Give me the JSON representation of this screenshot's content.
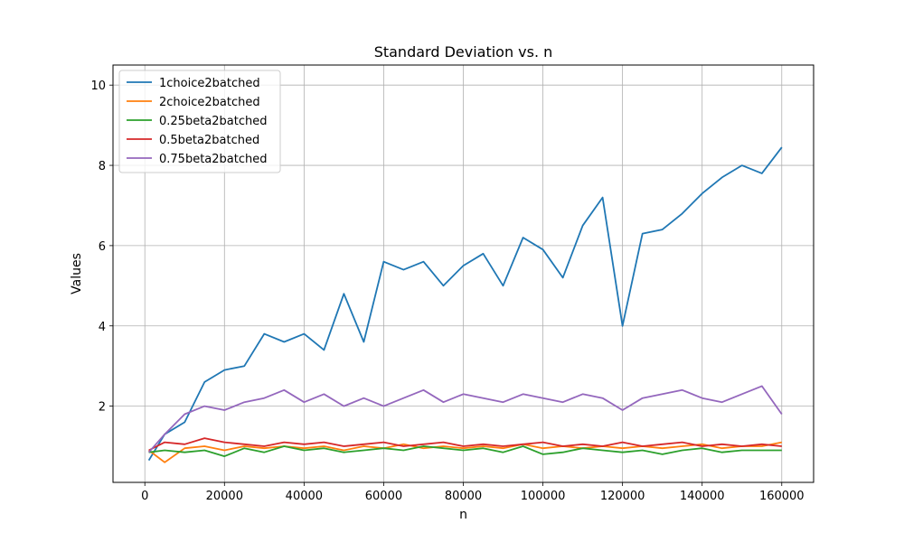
{
  "chart_data": {
    "type": "line",
    "title": "Standard Deviation vs. n",
    "xlabel": "n",
    "ylabel": "Values",
    "xlim": [
      -8000,
      168000
    ],
    "ylim": [
      0.1,
      10.5
    ],
    "xticks": [
      0,
      20000,
      40000,
      60000,
      80000,
      100000,
      120000,
      140000,
      160000
    ],
    "yticks": [
      2,
      4,
      6,
      8,
      10
    ],
    "grid": true,
    "legend_position": "top-left",
    "x": [
      1000,
      5000,
      10000,
      15000,
      20000,
      25000,
      30000,
      35000,
      40000,
      45000,
      50000,
      55000,
      60000,
      65000,
      70000,
      75000,
      80000,
      85000,
      90000,
      95000,
      100000,
      105000,
      110000,
      115000,
      120000,
      125000,
      130000,
      135000,
      140000,
      145000,
      150000,
      155000,
      160000
    ],
    "series": [
      {
        "name": "1choice2batched",
        "color": "#1f77b4",
        "values": [
          0.65,
          1.3,
          1.6,
          2.6,
          2.9,
          3.0,
          3.8,
          3.6,
          3.8,
          3.4,
          4.8,
          3.6,
          5.6,
          5.4,
          5.6,
          5.0,
          5.5,
          5.8,
          5.0,
          6.2,
          5.9,
          5.2,
          6.5,
          7.2,
          4.0,
          6.3,
          6.4,
          6.8,
          7.3,
          7.7,
          8.0,
          7.8,
          8.45
        ]
      },
      {
        "name": "2choice2batched",
        "color": "#ff7f0e",
        "values": [
          0.9,
          0.6,
          0.95,
          1.0,
          0.9,
          1.0,
          0.95,
          1.0,
          0.95,
          1.0,
          0.9,
          1.0,
          0.95,
          1.05,
          0.95,
          1.0,
          0.95,
          1.0,
          0.95,
          1.05,
          0.95,
          1.0,
          0.95,
          1.0,
          0.95,
          1.0,
          0.95,
          1.0,
          1.05,
          0.95,
          1.0,
          1.0,
          1.1
        ]
      },
      {
        "name": "0.25beta2batched",
        "color": "#2ca02c",
        "values": [
          0.85,
          0.9,
          0.85,
          0.9,
          0.75,
          0.95,
          0.85,
          1.0,
          0.9,
          0.95,
          0.85,
          0.9,
          0.95,
          0.9,
          1.0,
          0.95,
          0.9,
          0.95,
          0.85,
          1.0,
          0.8,
          0.85,
          0.95,
          0.9,
          0.85,
          0.9,
          0.8,
          0.9,
          0.95,
          0.85,
          0.9,
          0.9,
          0.9
        ]
      },
      {
        "name": "0.5beta2batched",
        "color": "#d62728",
        "values": [
          0.9,
          1.1,
          1.05,
          1.2,
          1.1,
          1.05,
          1.0,
          1.1,
          1.05,
          1.1,
          1.0,
          1.05,
          1.1,
          1.0,
          1.05,
          1.1,
          1.0,
          1.05,
          1.0,
          1.05,
          1.1,
          1.0,
          1.05,
          1.0,
          1.1,
          1.0,
          1.05,
          1.1,
          1.0,
          1.05,
          1.0,
          1.05,
          1.0
        ]
      },
      {
        "name": "0.75beta2batched",
        "color": "#9467bd",
        "values": [
          0.85,
          1.3,
          1.8,
          2.0,
          1.9,
          2.1,
          2.2,
          2.4,
          2.1,
          2.3,
          2.0,
          2.2,
          2.0,
          2.2,
          2.4,
          2.1,
          2.3,
          2.2,
          2.1,
          2.3,
          2.2,
          2.1,
          2.3,
          2.2,
          1.9,
          2.2,
          2.3,
          2.4,
          2.2,
          2.1,
          2.3,
          2.5,
          1.8
        ]
      }
    ]
  }
}
